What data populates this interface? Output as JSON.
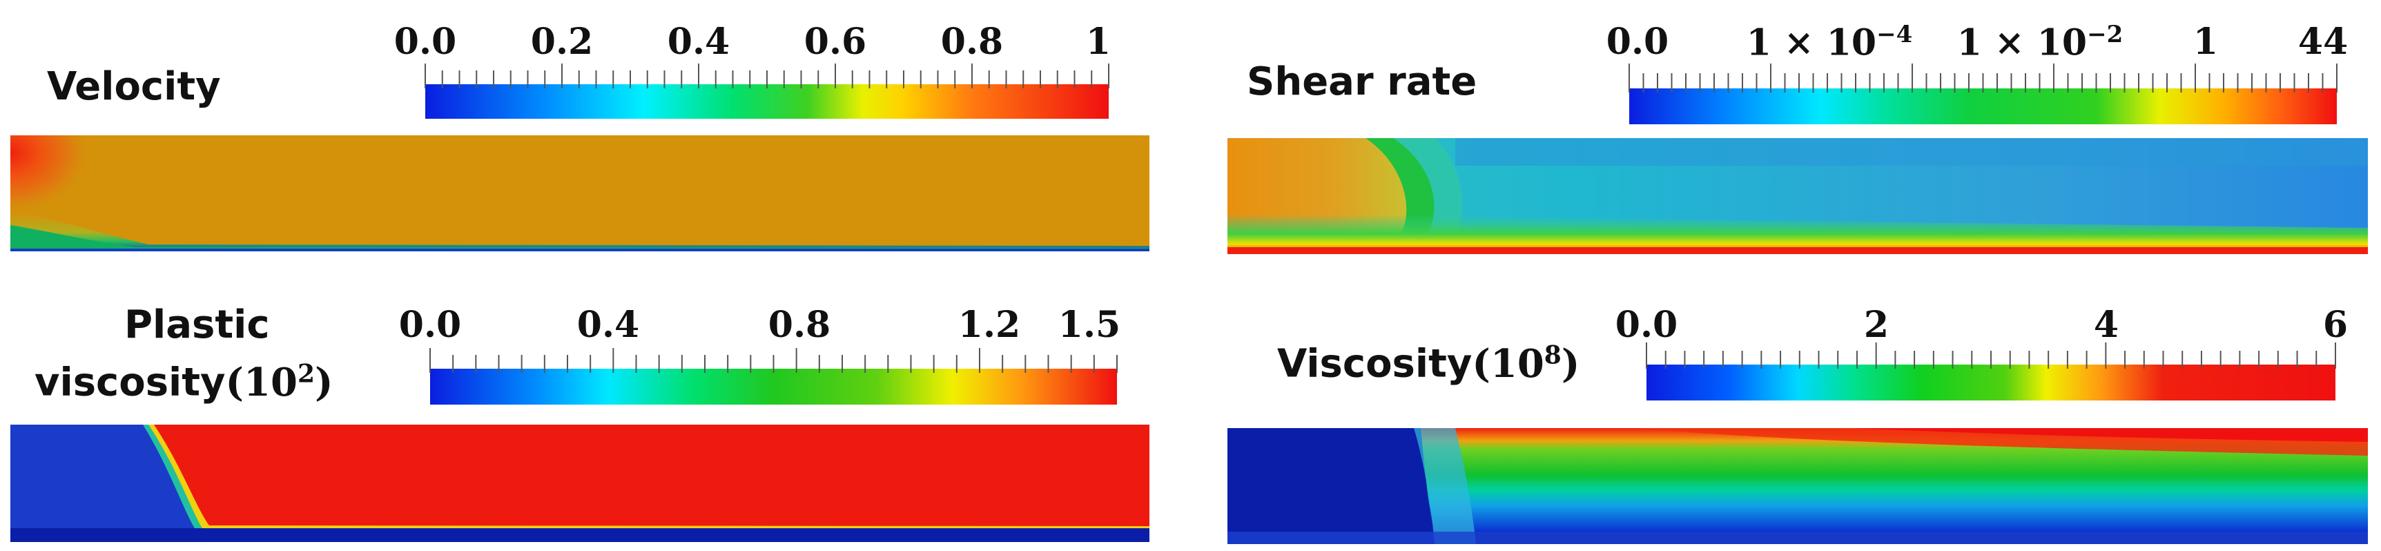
{
  "panels": {
    "velocity": {
      "title": "Velocity",
      "ticks": [
        "0.0",
        "0.2",
        "0.4",
        "0.6",
        "0.8",
        "1"
      ]
    },
    "shear_rate": {
      "title": "Shear rate",
      "ticks": [
        "0.0",
        "1 × 10",
        "1 × 10",
        "1",
        "44"
      ],
      "tick_exponents": [
        "",
        "−4",
        "−2",
        "",
        ""
      ]
    },
    "plastic_viscosity": {
      "title_line1": "Plastic",
      "title_line2": "viscosity",
      "title_math": "(10",
      "title_math_exp": "2",
      "title_math_close": ")",
      "ticks": [
        "0.0",
        "0.4",
        "0.8",
        "1.2",
        "1.5"
      ]
    },
    "viscosity": {
      "title": "Viscosity",
      "title_math": "(10",
      "title_math_exp": "8",
      "title_math_close": ")",
      "ticks": [
        "0.0",
        "2",
        "4",
        "6"
      ]
    }
  },
  "colors": {
    "jet": [
      "#0000c8",
      "#0050ff",
      "#00e6ff",
      "#00ff9a",
      "#10d020",
      "#9ae600",
      "#ffff00",
      "#ff9a00",
      "#ff2000",
      "#e00000"
    ],
    "velocity_field": "#d4920a",
    "plastic_red": "#ee1a10",
    "deep_blue": "#0a1ea8"
  }
}
